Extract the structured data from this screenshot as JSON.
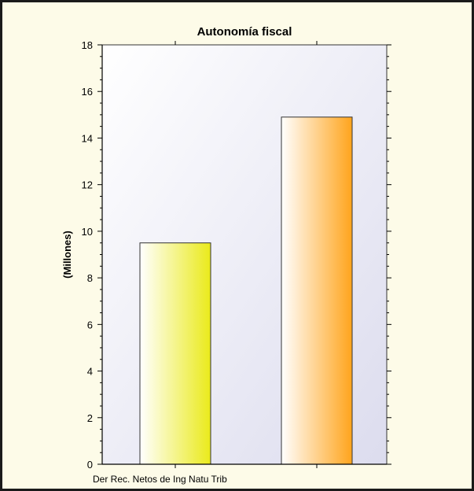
{
  "chart_data": {
    "type": "bar",
    "title": "Autonomía fiscal",
    "ylabel": "(Millones)",
    "xlabel": "",
    "ylim": [
      0,
      18
    ],
    "yticks": [
      0,
      2,
      4,
      6,
      8,
      10,
      12,
      14,
      16,
      18
    ],
    "category_label": "Der Rec. Netos de Ing Natu Trib",
    "series": [
      {
        "values": [
          9.5
        ],
        "color_light": "#ffffff",
        "color_dark": "#eaea1a"
      },
      {
        "values": [
          14.9
        ],
        "color_light": "#ffffff",
        "color_dark": "#ffa41c"
      }
    ],
    "grid": false,
    "legend": "none",
    "colors": {
      "plot_background_light": "#ffffff",
      "plot_background_dark": "#dcdcee",
      "chart_background": "#fdfbe8"
    }
  }
}
